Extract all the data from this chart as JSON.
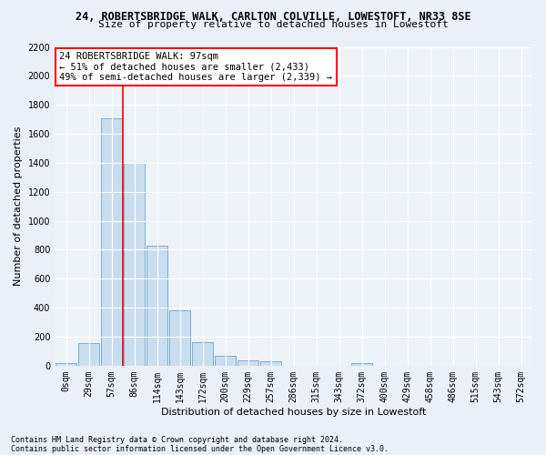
{
  "title1": "24, ROBERTSBRIDGE WALK, CARLTON COLVILLE, LOWESTOFT, NR33 8SE",
  "title2": "Size of property relative to detached houses in Lowestoft",
  "xlabel": "Distribution of detached houses by size in Lowestoft",
  "ylabel": "Number of detached properties",
  "categories": [
    "0sqm",
    "29sqm",
    "57sqm",
    "86sqm",
    "114sqm",
    "143sqm",
    "172sqm",
    "200sqm",
    "229sqm",
    "257sqm",
    "286sqm",
    "315sqm",
    "343sqm",
    "372sqm",
    "400sqm",
    "429sqm",
    "458sqm",
    "486sqm",
    "515sqm",
    "543sqm",
    "572sqm"
  ],
  "values": [
    15,
    155,
    1710,
    1400,
    830,
    385,
    165,
    68,
    35,
    28,
    0,
    0,
    0,
    15,
    0,
    0,
    0,
    0,
    0,
    0,
    0
  ],
  "bar_color": "#c9ddf0",
  "bar_edge_color": "#7aafd4",
  "ylim": [
    0,
    2200
  ],
  "yticks": [
    0,
    200,
    400,
    600,
    800,
    1000,
    1200,
    1400,
    1600,
    1800,
    2000,
    2200
  ],
  "red_line_x": 2.5,
  "annotation_line1": "24 ROBERTSBRIDGE WALK: 97sqm",
  "annotation_line2": "← 51% of detached houses are smaller (2,433)",
  "annotation_line3": "49% of semi-detached houses are larger (2,339) →",
  "footer_line1": "Contains HM Land Registry data © Crown copyright and database right 2024.",
  "footer_line2": "Contains public sector information licensed under the Open Government Licence v3.0.",
  "bg_color": "#eaeff8",
  "plot_bg_color": "#edf1f8",
  "grid_color": "#ffffff",
  "title1_fontsize": 8.5,
  "title2_fontsize": 8,
  "ylabel_fontsize": 8,
  "xlabel_fontsize": 8,
  "tick_fontsize": 7,
  "footer_fontsize": 6,
  "annotation_fontsize": 7.5
}
